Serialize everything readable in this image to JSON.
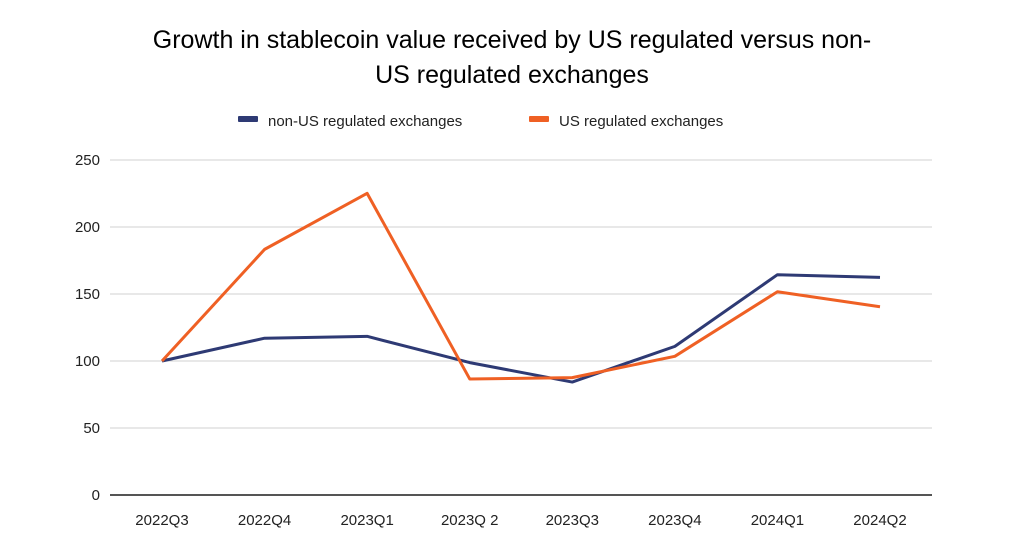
{
  "chart_data": {
    "type": "line",
    "title_lines": [
      "Growth in stablecoin value received by US regulated versus non-",
      "US regulated exchanges"
    ],
    "xlabel": "",
    "ylabel": "",
    "categories": [
      "2022Q3",
      "2022Q4",
      "2023Q1",
      "2023Q 2",
      "2023Q3",
      "2023Q4",
      "2024Q1",
      "2024Q2"
    ],
    "ylim": [
      0,
      250
    ],
    "yticks": [
      0,
      50,
      100,
      150,
      200,
      250
    ],
    "grid": true,
    "legend_position": "top",
    "series": [
      {
        "name": "non-US regulated exchanges",
        "color": "#2e3a74",
        "values": [
          100,
          117,
          118.4,
          98.8,
          84.3,
          110.9,
          164.4,
          162.4
        ]
      },
      {
        "name": "US regulated exchanges",
        "color": "#ef6024",
        "values": [
          100,
          183.3,
          225.1,
          86.6,
          87.6,
          103.5,
          151.7,
          140.5
        ]
      }
    ]
  }
}
